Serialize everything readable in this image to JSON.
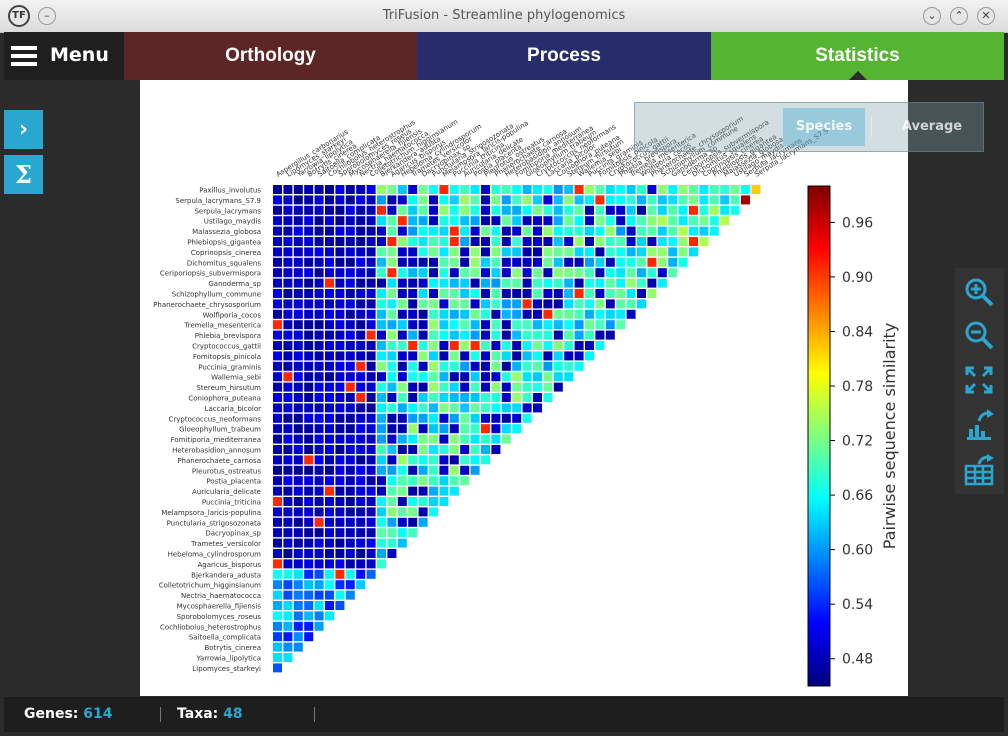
{
  "window": {
    "title": "TriFusion - Streamline phylogenomics",
    "logo_text": "TF",
    "btn_min": "⌄",
    "btn_max": "⌃",
    "btn_close": "✕",
    "btn_menu": "–"
  },
  "header": {
    "menu_label": "Menu",
    "tabs": [
      "Orthology",
      "Process",
      "Statistics"
    ],
    "active_tab": "Statistics"
  },
  "side": {
    "expand_icon": "›",
    "sigma_icon": "Σ"
  },
  "overlay": {
    "species_label": "Species",
    "average_label": "Average"
  },
  "statusbar": {
    "genes_label": "Genes:",
    "genes_value": "614",
    "taxa_label": "Taxa:",
    "taxa_value": "48"
  },
  "colors": {
    "orthology": "#5c2626",
    "process": "#272d6a",
    "statistics": "#55b532",
    "accent": "#2aa7d0"
  },
  "chart_data": {
    "type": "heatmap",
    "title": "",
    "colorbar_label": "Pairwise sequence similarity",
    "colorbar_ticks": [
      0.96,
      0.9,
      0.84,
      0.78,
      0.72,
      0.66,
      0.6,
      0.54,
      0.48
    ],
    "vrange": [
      0.45,
      1.0
    ],
    "row_labels": [
      "Paxillus_involutus",
      "Serpula_lacrymans_S7.9",
      "Serpula_lacrymans",
      "Ustilago_maydis",
      "Malassezia_globosa",
      "Phlebiopsis_gigantea",
      "Coprinopsis_cinerea",
      "Dichomitus_squalens",
      "Ceriporiopsis_subvermispora",
      "Ganoderma_sp",
      "Schizophyllum_commune",
      "Phanerochaete_chrysosporium",
      "Wolfiporia_cocos",
      "Tremella_mesenterica",
      "Phlebia_brevispora",
      "Cryptococcus_gattii",
      "Fomitopsis_pinicola",
      "Puccinia_graminis",
      "Wallemia_sebi",
      "Stereum_hirsutum",
      "Coniophora_puteana",
      "Laccaria_bicolor",
      "Cryptococcus_neoformans",
      "Gloeophyllum_trabeum",
      "Fomitiporia_mediterranea",
      "Heterobasidion_annosum",
      "Phanerochaete_carnosa",
      "Pleurotus_ostreatus",
      "Postia_placenta",
      "Auricularia_delicate",
      "Puccinia_triticina",
      "Melampsora_laricis-populina",
      "Punctularia_strigosozonata",
      "Dacryopinax_sp",
      "Trametes_versicolor",
      "Hebeloma_cylindrosporum",
      "Agaricus_bisporus",
      "Bjerkandera_adusta",
      "Colletotrichum_higginsianum",
      "Nectria_haematococca",
      "Mycosphaerella_fijiensis",
      "Sporobolomyces_roseus",
      "Cochliobolus_heterostrophus",
      "Saitoella_complicata",
      "Botrytis_cinerea",
      "Yarrowia_lipolytica",
      "Lipomyces_starkeyi"
    ],
    "col_labels": [
      "Aspergillus_carbonarius",
      "Lipomyces_starkeyi",
      "Yarrowia_lipolytica",
      "Botrytis_cinerea",
      "Saitoella_complicata",
      "Cochliobolus_heterostrophus",
      "Sporobolomyces_roseus",
      "Mycosphaerella_fijiensis",
      "Nectria_haematococca",
      "Colletotrichum_higginsianum",
      "Bjerkandera_adusta",
      "Agaricus_bisporus",
      "Hebeloma_cylindrosporum",
      "Trametes_versicolor",
      "Dacryopinax_sp",
      "Punctularia_strigosozonata",
      "Melampsora_laricis-populina",
      "Puccinia_triticina",
      "Auricularia_delicate",
      "Postia_placenta",
      "Pleurotus_ostreatus",
      "Phanerochaete_carnosa",
      "Heterobasidion_annosum",
      "Fomitiporia_mediterranea",
      "Gloeophyllum_trabeum",
      "Cryptococcus_neoformans",
      "Laccaria_bicolor",
      "Coniophora_puteana",
      "Stereum_hirsutum",
      "Wallemia_sebi",
      "Puccinia_graminis",
      "Fomitopsis_pinicola",
      "Cryptococcus_gattii",
      "Phlebia_brevispora",
      "Tremella_mesenterica",
      "Wolfiporia_cocos",
      "Phanerochaete_chrysosporium",
      "Schizophyllum_commune",
      "Ganoderma_sp",
      "Ceriporiopsis_subvermispora",
      "Dichomitus_squalens",
      "Coprinopsis_cinerea",
      "Phlebiopsis_gigantea",
      "Malassezia_globosa",
      "Ustilago_maydis",
      "Serpula_lacrymans",
      "Serpula_lacrymans_S7.9"
    ],
    "cell_rule": "row i (0 = top) spans columns 0..46-i; asco columns 0-9, basidio columns 10+",
    "values_note": "asco-asco ~0.54-0.66, asco-basidio ~0.46-0.50, basidio-basidio ~0.60-0.75, highlight pairs up to 0.96"
  }
}
